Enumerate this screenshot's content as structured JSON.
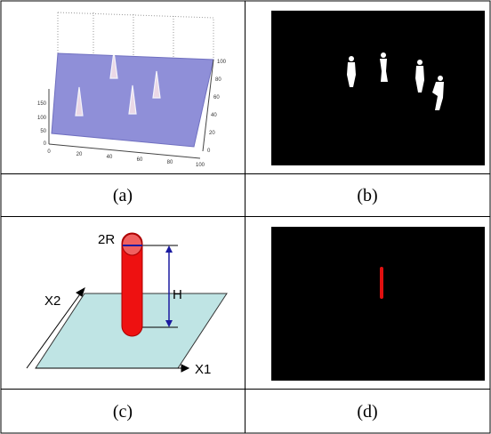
{
  "panels": [
    {
      "caption": "(a)",
      "plot": {
        "z_ticks": [
          "150",
          "100",
          "50",
          "0"
        ],
        "x_ticks": [
          "0",
          "20",
          "40",
          "60",
          "80",
          "100"
        ],
        "y_ticks": [
          "100",
          "80",
          "60",
          "40",
          "20",
          "0"
        ]
      }
    },
    {
      "caption": "(b)"
    },
    {
      "caption": "(c)",
      "diagram": {
        "radius_label": "2R",
        "height_label": "H",
        "x2_label": "X2",
        "x1_label": "X1"
      }
    },
    {
      "caption": "(d)"
    }
  ]
}
